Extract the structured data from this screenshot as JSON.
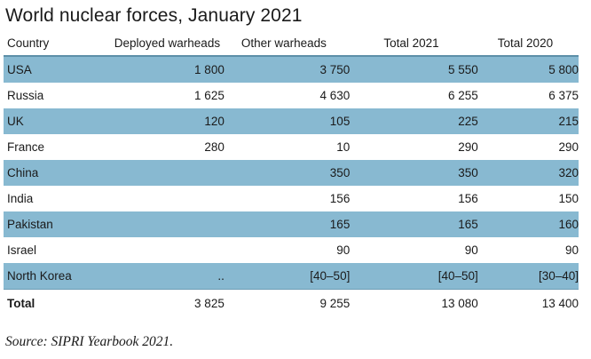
{
  "title": "World nuclear forces, January 2021",
  "headers": [
    "Country",
    "Deployed warheads",
    "Other warheads",
    "Total 2021",
    "Total 2020"
  ],
  "rows": [
    {
      "country": "USA",
      "deployed": "1 800",
      "other": "3 750",
      "total2021": "5 550",
      "total2020": "5 800"
    },
    {
      "country": "Russia",
      "deployed": "1 625",
      "other": "4 630",
      "total2021": "6 255",
      "total2020": "6 375"
    },
    {
      "country": "UK",
      "deployed": "120",
      "other": "105",
      "total2021": "225",
      "total2020": "215"
    },
    {
      "country": "France",
      "deployed": "280",
      "other": "10",
      "total2021": "290",
      "total2020": "290"
    },
    {
      "country": "China",
      "deployed": "",
      "other": "350",
      "total2021": "350",
      "total2020": "320"
    },
    {
      "country": "India",
      "deployed": "",
      "other": "156",
      "total2021": "156",
      "total2020": "150"
    },
    {
      "country": "Pakistan",
      "deployed": "",
      "other": "165",
      "total2021": "165",
      "total2020": "160"
    },
    {
      "country": "Israel",
      "deployed": "",
      "other": "90",
      "total2021": "90",
      "total2020": "90"
    },
    {
      "country": "North Korea",
      "deployed": "..",
      "other": "[40–50]",
      "total2021": "[40–50]",
      "total2020": "[30–40]"
    }
  ],
  "total": {
    "country": "Total",
    "deployed": "3 825",
    "other": "9 255",
    "total2021": "13 080",
    "total2020": "13 400"
  },
  "source": "Source: SIPRI Yearbook 2021.",
  "colors": {
    "shaded_row": "#88b9d1",
    "header_rule": "#5d8fa8"
  }
}
